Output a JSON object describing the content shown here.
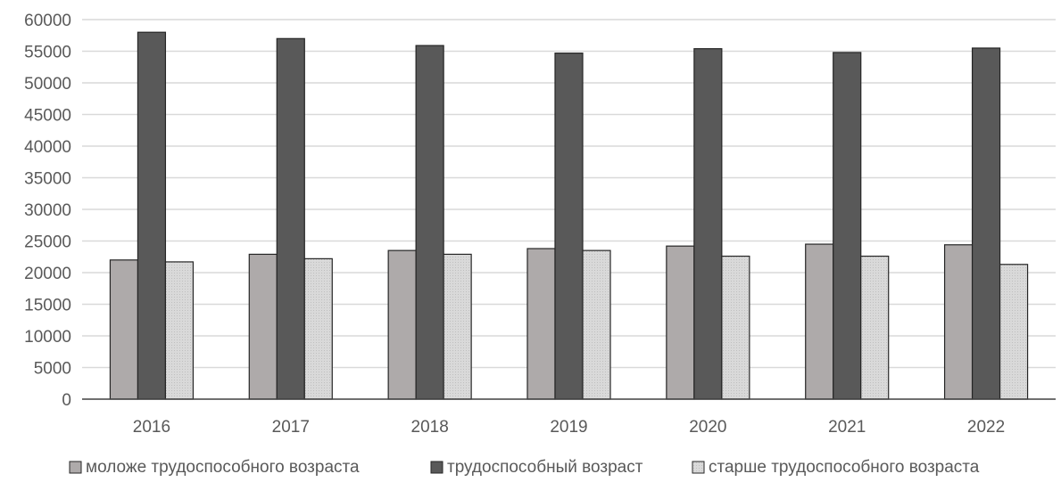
{
  "chart_data": {
    "type": "bar",
    "title": "",
    "xlabel": "",
    "ylabel": "",
    "categories": [
      "2016",
      "2017",
      "2018",
      "2019",
      "2020",
      "2021",
      "2022"
    ],
    "series": [
      {
        "name": "моложе трудоспособного возраста",
        "color": "#aeaaaa",
        "values": [
          22000,
          22900,
          23500,
          23800,
          24200,
          24500,
          24400
        ]
      },
      {
        "name": "трудоспособный возраст",
        "color": "#595959",
        "values": [
          58000,
          57000,
          55900,
          54700,
          55400,
          54800,
          55500
        ]
      },
      {
        "name": "старше трудоспособного возраста",
        "color": "#d9d9d9",
        "values": [
          21700,
          22200,
          22900,
          23500,
          22600,
          22600,
          21300
        ]
      }
    ],
    "ylim": [
      0,
      60000
    ],
    "yticks": [
      0,
      5000,
      10000,
      15000,
      20000,
      25000,
      30000,
      35000,
      40000,
      45000,
      50000,
      55000,
      60000
    ],
    "grid": true,
    "legend_position": "bottom"
  }
}
